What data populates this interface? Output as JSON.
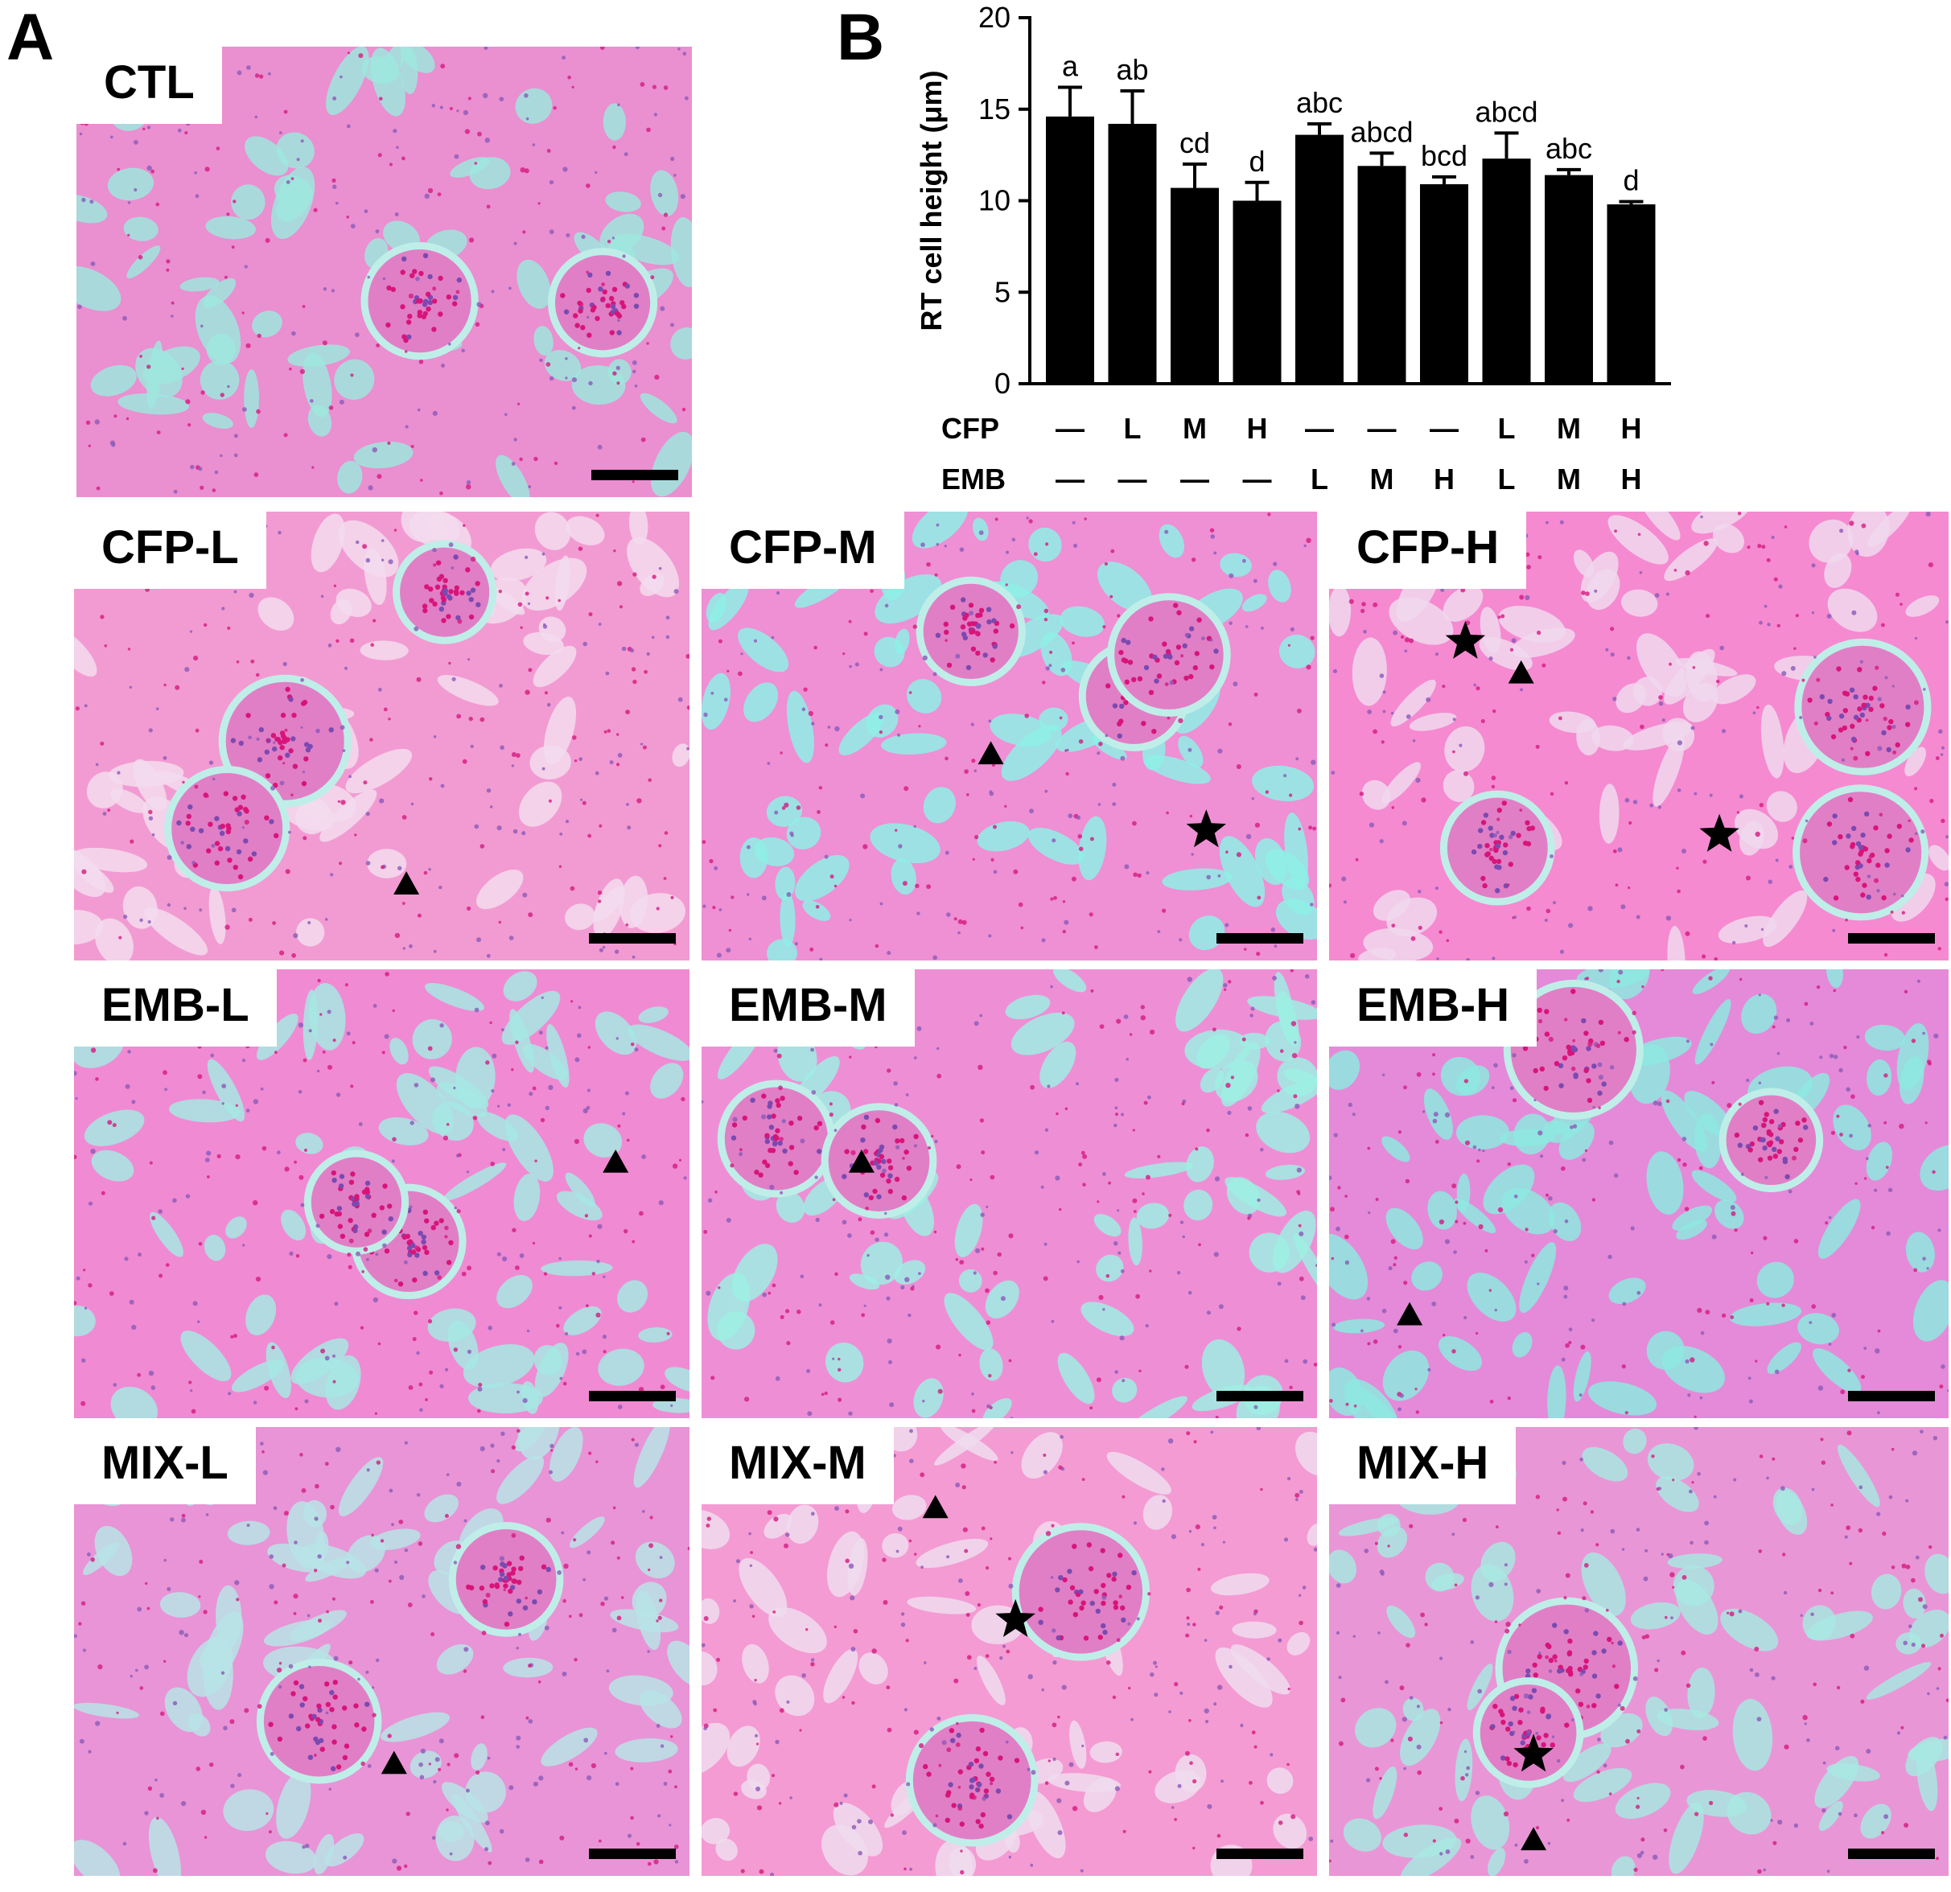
{
  "panel_a": {
    "letter": "A"
  },
  "panel_b": {
    "letter": "B"
  },
  "micrographs": [
    {
      "label": "CTL",
      "tissue": "#ea8fd0",
      "lumen": "#9fe6de",
      "markers": []
    },
    {
      "label": "CFP-L",
      "tissue": "#f29bd2",
      "lumen": "#f3dcef",
      "markers": [
        "triangle"
      ]
    },
    {
      "label": "CFP-M",
      "tissue": "#ef8fd4",
      "lumen": "#8ef0e6",
      "markers": [
        "triangle",
        "star"
      ]
    },
    {
      "label": "CFP-H",
      "tissue": "#f58ad0",
      "lumen": "#f0d8ee",
      "markers": [
        "star",
        "triangle",
        "star"
      ]
    },
    {
      "label": "EMB-L",
      "tissue": "#f08ad3",
      "lumen": "#a6e8e3",
      "markers": [
        "triangle"
      ]
    },
    {
      "label": "EMB-M",
      "tissue": "#ee8fd6",
      "lumen": "#9deee3",
      "markers": [
        "triangle"
      ]
    },
    {
      "label": "EMB-H",
      "tissue": "#e48ad8",
      "lumen": "#8ee8e0",
      "markers": [
        "triangle"
      ]
    },
    {
      "label": "MIX-L",
      "tissue": "#e894d6",
      "lumen": "#b7e4e6",
      "markers": [
        "triangle"
      ]
    },
    {
      "label": "MIX-M",
      "tissue": "#f49bd3",
      "lumen": "#f0dcef",
      "markers": [
        "triangle",
        "star"
      ]
    },
    {
      "label": "MIX-H",
      "tissue": "#e996d6",
      "lumen": "#a8e8e2",
      "markers": [
        "star",
        "triangle"
      ]
    }
  ],
  "chart_data": {
    "type": "bar",
    "ylabel": "RT cell height (μm)",
    "ylim": [
      0,
      20
    ],
    "yticks": [
      "0",
      "5",
      "10",
      "15",
      "20"
    ],
    "values": [
      14.6,
      14.2,
      10.7,
      10.0,
      13.6,
      11.9,
      10.9,
      12.3,
      11.4,
      9.8
    ],
    "errors": [
      1.6,
      1.8,
      1.3,
      1.0,
      0.6,
      0.7,
      0.4,
      1.4,
      0.3,
      0.15
    ],
    "letters": [
      "a",
      "ab",
      "cd",
      "d",
      "abc",
      "abcd",
      "bcd",
      "abcd",
      "abc",
      "d"
    ],
    "rows": [
      {
        "name": "CFP",
        "levels": [
          "—",
          "L",
          "M",
          "H",
          "—",
          "—",
          "—",
          "L",
          "M",
          "H"
        ]
      },
      {
        "name": "EMB",
        "levels": [
          "—",
          "—",
          "—",
          "—",
          "L",
          "M",
          "H",
          "L",
          "M",
          "H"
        ]
      }
    ],
    "grid": false,
    "bar_color": "#000000"
  }
}
